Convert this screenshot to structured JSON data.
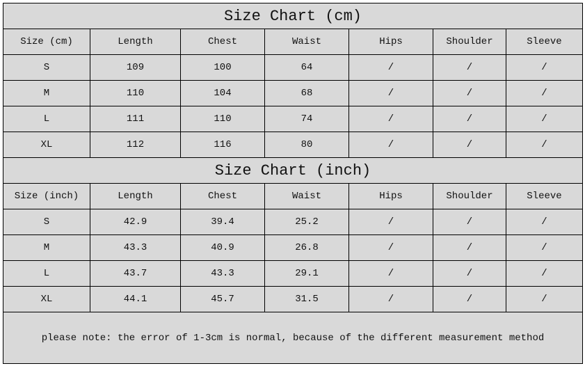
{
  "cm_table": {
    "title": "Size Chart (cm)",
    "headers": [
      "Size (cm)",
      "Length",
      "Chest",
      "Waist",
      "Hips",
      "Shoulder",
      "Sleeve"
    ],
    "rows": [
      [
        "S",
        "109",
        "100",
        "64",
        "/",
        "/",
        "/"
      ],
      [
        "M",
        "110",
        "104",
        "68",
        "/",
        "/",
        "/"
      ],
      [
        "L",
        "111",
        "110",
        "74",
        "/",
        "/",
        "/"
      ],
      [
        "XL",
        "112",
        "116",
        "80",
        "/",
        "/",
        "/"
      ]
    ]
  },
  "inch_table": {
    "title": "Size Chart (inch)",
    "headers": [
      "Size (inch)",
      "Length",
      "Chest",
      "Waist",
      "Hips",
      "Shoulder",
      "Sleeve"
    ],
    "rows": [
      [
        "S",
        "42.9",
        "39.4",
        "25.2",
        "/",
        "/",
        "/"
      ],
      [
        "M",
        "43.3",
        "40.9",
        "26.8",
        "/",
        "/",
        "/"
      ],
      [
        "L",
        "43.7",
        "43.3",
        "29.1",
        "/",
        "/",
        "/"
      ],
      [
        "XL",
        "44.1",
        "45.7",
        "31.5",
        "/",
        "/",
        "/"
      ]
    ]
  },
  "note": "please note: the error of 1-3cm is normal, because of the different measurement method",
  "colors": {
    "cell_background": "#d9d9d9",
    "border": "#000000"
  }
}
